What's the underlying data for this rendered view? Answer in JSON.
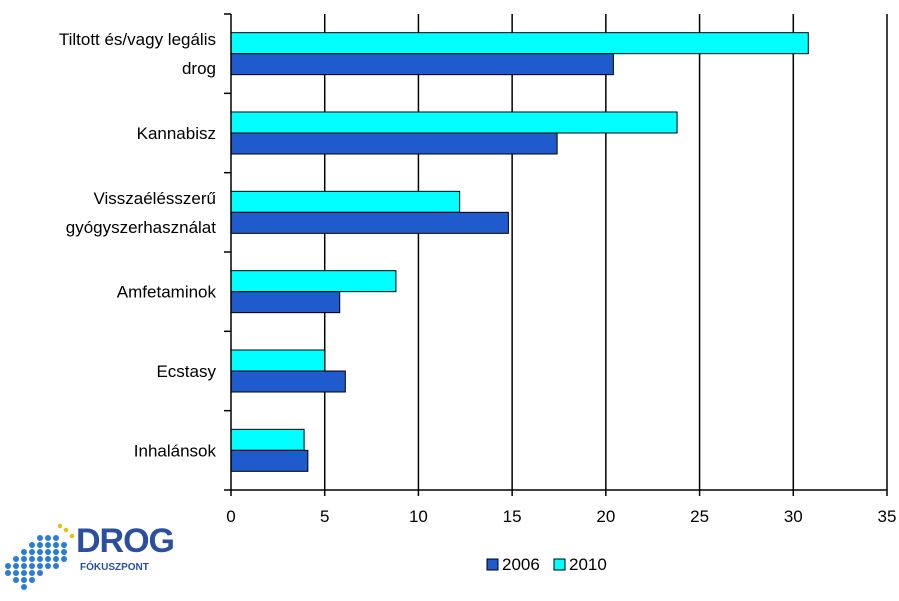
{
  "chart_data": {
    "type": "bar",
    "orientation": "horizontal",
    "categories": [
      [
        "Tiltott és/vagy legális",
        "drog"
      ],
      [
        "Kannabisz"
      ],
      [
        "Visszaélésszerű",
        "gyógyszerhasználat"
      ],
      [
        "Amfetaminok"
      ],
      [
        "Ecstasy"
      ],
      [
        "Inhalánsok"
      ]
    ],
    "series": [
      {
        "name": "2010",
        "color": "#00ffff",
        "values": [
          30.8,
          23.8,
          12.2,
          8.8,
          5.0,
          3.9
        ]
      },
      {
        "name": "2006",
        "color": "#1f5bcc",
        "values": [
          20.4,
          17.4,
          14.8,
          5.8,
          6.1,
          4.1
        ]
      }
    ],
    "xlim": [
      0,
      35
    ],
    "xticks": [
      "0",
      "5",
      "10",
      "15",
      "20",
      "25",
      "30",
      "35"
    ],
    "grid": "vertical",
    "legend": {
      "position": "bottom",
      "entries": [
        "2006",
        "2010"
      ]
    }
  },
  "logo": {
    "word": "DROG",
    "sub": "FÓKUSZPONT"
  }
}
